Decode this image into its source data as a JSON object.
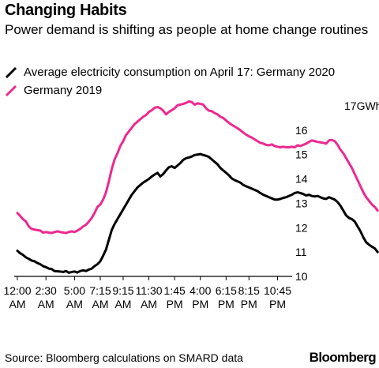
{
  "header": {
    "title": "Changing Habits",
    "subtitle": "Power demand is shifting as people at home change routines"
  },
  "footer": {
    "source": "Source: Bloomberg calculations on SMARD data",
    "brand": "Bloomberg"
  },
  "colors": {
    "series_2020": "#000000",
    "series_2019": "#ec2a90",
    "axis": "#000000"
  },
  "chart_data": {
    "type": "line",
    "title": "Changing Habits",
    "subtitle": "Power demand is shifting as people at home change routines",
    "xlabel": "",
    "ylabel": "",
    "y_unit_label": "17GWh",
    "ylim": [
      10,
      17
    ],
    "yticks": [
      10,
      11,
      12,
      13,
      14,
      15,
      16,
      17
    ],
    "xlim": [
      0,
      23.75
    ],
    "x_interval_hours": 0.25,
    "xticks": [
      {
        "hour": 0,
        "line1": "12:00",
        "line2": "AM"
      },
      {
        "hour": 2.5,
        "line1": "2:30",
        "line2": "AM"
      },
      {
        "hour": 5,
        "line1": "5:00",
        "line2": "AM"
      },
      {
        "hour": 7.25,
        "line1": "7:15",
        "line2": "AM"
      },
      {
        "hour": 9.25,
        "line1": "9:15",
        "line2": "AM"
      },
      {
        "hour": 11.5,
        "line1": "11:30",
        "line2": "AM"
      },
      {
        "hour": 13.75,
        "line1": "1:45",
        "line2": "PM"
      },
      {
        "hour": 16,
        "line1": "4:00",
        "line2": "PM"
      },
      {
        "hour": 18.25,
        "line1": "6:15",
        "line2": "PM"
      },
      {
        "hour": 20.25,
        "line1": "8:15",
        "line2": "PM"
      },
      {
        "hour": 22.75,
        "line1": "10:45",
        "line2": "PM"
      }
    ],
    "grid": false,
    "legend_position": "top-left",
    "series": [
      {
        "name": "Average electricity consumption on April 17: Germany 2020",
        "color": "#000000",
        "values": [
          11.05,
          10.95,
          10.88,
          10.78,
          10.72,
          10.65,
          10.62,
          10.55,
          10.5,
          10.42,
          10.38,
          10.32,
          10.3,
          10.22,
          10.21,
          10.2,
          10.18,
          10.22,
          10.15,
          10.18,
          10.2,
          10.16,
          10.22,
          10.25,
          10.22,
          10.28,
          10.32,
          10.42,
          10.5,
          10.62,
          10.85,
          11.1,
          11.5,
          11.9,
          12.15,
          12.35,
          12.55,
          12.75,
          12.95,
          13.15,
          13.35,
          13.5,
          13.65,
          13.75,
          13.85,
          13.92,
          14.0,
          14.1,
          14.18,
          14.25,
          14.1,
          14.2,
          14.35,
          14.48,
          14.52,
          14.45,
          14.55,
          14.65,
          14.78,
          14.85,
          14.88,
          14.92,
          14.98,
          15.0,
          15.02,
          14.98,
          14.95,
          14.9,
          14.8,
          14.7,
          14.6,
          14.45,
          14.35,
          14.25,
          14.15,
          14.02,
          13.95,
          13.9,
          13.85,
          13.75,
          13.7,
          13.65,
          13.6,
          13.55,
          13.5,
          13.42,
          13.35,
          13.3,
          13.25,
          13.2,
          13.15,
          13.15,
          13.18,
          13.22,
          13.25,
          13.3,
          13.35,
          13.42,
          13.45,
          13.42,
          13.38,
          13.32,
          13.35,
          13.3,
          13.28,
          13.3,
          13.25,
          13.2,
          13.18,
          13.25,
          13.2,
          13.15,
          13.05,
          12.9,
          12.7,
          12.5,
          12.4,
          12.35,
          12.25,
          12.05,
          11.85,
          11.6,
          11.4,
          11.3,
          11.22,
          11.15,
          11.0
        ]
      },
      {
        "name": "Germany 2019",
        "color": "#ec2a90",
        "values": [
          12.6,
          12.48,
          12.35,
          12.25,
          12.05,
          11.95,
          11.92,
          11.9,
          11.88,
          11.8,
          11.82,
          11.8,
          11.78,
          11.82,
          11.85,
          11.82,
          11.8,
          11.78,
          11.82,
          11.85,
          11.82,
          11.88,
          11.95,
          12.05,
          12.12,
          12.25,
          12.4,
          12.6,
          12.85,
          12.95,
          13.15,
          13.45,
          13.9,
          14.4,
          14.8,
          15.05,
          15.35,
          15.55,
          15.8,
          15.95,
          16.1,
          16.25,
          16.35,
          16.45,
          16.55,
          16.62,
          16.75,
          16.82,
          16.92,
          16.95,
          16.9,
          16.8,
          16.65,
          16.75,
          16.82,
          16.9,
          17.02,
          17.05,
          17.08,
          17.12,
          17.18,
          17.15,
          17.05,
          17.1,
          17.08,
          17.05,
          16.9,
          16.8,
          16.78,
          16.7,
          16.65,
          16.55,
          16.5,
          16.4,
          16.3,
          16.22,
          16.15,
          16.08,
          16.0,
          15.9,
          15.82,
          15.75,
          15.7,
          15.62,
          15.55,
          15.48,
          15.45,
          15.4,
          15.38,
          15.42,
          15.35,
          15.32,
          15.3,
          15.32,
          15.3,
          15.3,
          15.32,
          15.3,
          15.38,
          15.35,
          15.4,
          15.45,
          15.52,
          15.58,
          15.55,
          15.52,
          15.5,
          15.48,
          15.45,
          15.58,
          15.6,
          15.55,
          15.4,
          15.2,
          15.05,
          14.85,
          14.65,
          14.45,
          14.2,
          13.95,
          13.7,
          13.45,
          13.25,
          13.1,
          12.95,
          12.85,
          12.7
        ]
      }
    ]
  }
}
